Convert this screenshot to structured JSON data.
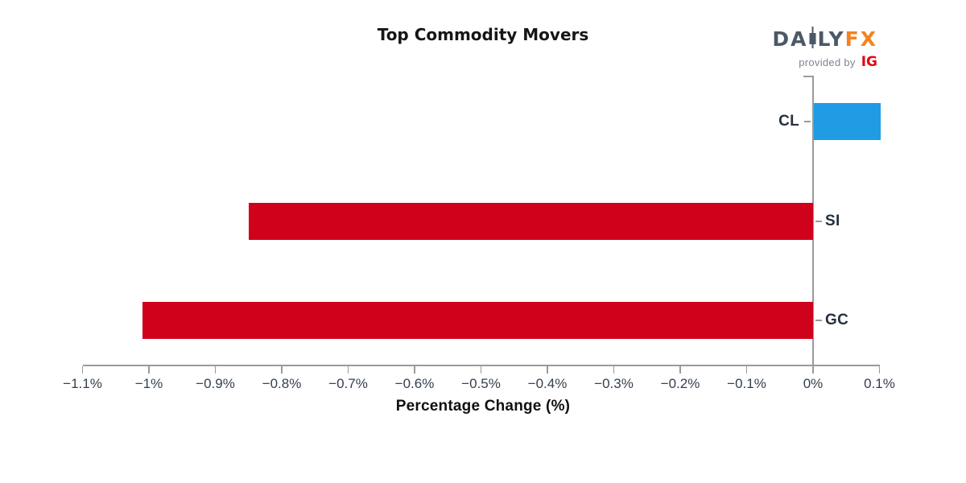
{
  "header": {
    "title": "Top Commodity Movers"
  },
  "logo": {
    "brand_prefix": "DA",
    "brand_suffix": "LY",
    "brand_accent": "FX",
    "provided_by": "provided by",
    "provider": "IG",
    "colors": {
      "brand": "#4D5866",
      "accent": "#F5821F",
      "provided_by": "#7D8692",
      "provider": "#E30613"
    }
  },
  "chart_data": {
    "type": "bar",
    "orientation": "horizontal",
    "title": "Top Commodity Movers",
    "xlabel": "Percentage Change (%)",
    "categories": [
      "CL",
      "SI",
      "GC"
    ],
    "values": [
      0.1,
      -0.85,
      -1.01
    ],
    "value_unit": "%",
    "xlim": [
      -1.1,
      0.1
    ],
    "xticks": [
      {
        "value": -1.1,
        "label": "−1.1%"
      },
      {
        "value": -1.0,
        "label": "−1%"
      },
      {
        "value": -0.9,
        "label": "−0.9%"
      },
      {
        "value": -0.8,
        "label": "−0.8%"
      },
      {
        "value": -0.7,
        "label": "−0.7%"
      },
      {
        "value": -0.6,
        "label": "−0.6%"
      },
      {
        "value": -0.5,
        "label": "−0.5%"
      },
      {
        "value": -0.4,
        "label": "−0.4%"
      },
      {
        "value": -0.3,
        "label": "−0.3%"
      },
      {
        "value": -0.2,
        "label": "−0.2%"
      },
      {
        "value": -0.1,
        "label": "−0.1%"
      },
      {
        "value": 0.0,
        "label": "0%"
      },
      {
        "value": 0.1,
        "label": "0.1%"
      }
    ],
    "grid": false,
    "legend": "none",
    "colors": {
      "positive_bar": "#1F9CE4",
      "negative_bar": "#D0021B",
      "axis": "#9A9A9A",
      "tick_text": "#333F4F",
      "category_text": "#26303F"
    }
  }
}
